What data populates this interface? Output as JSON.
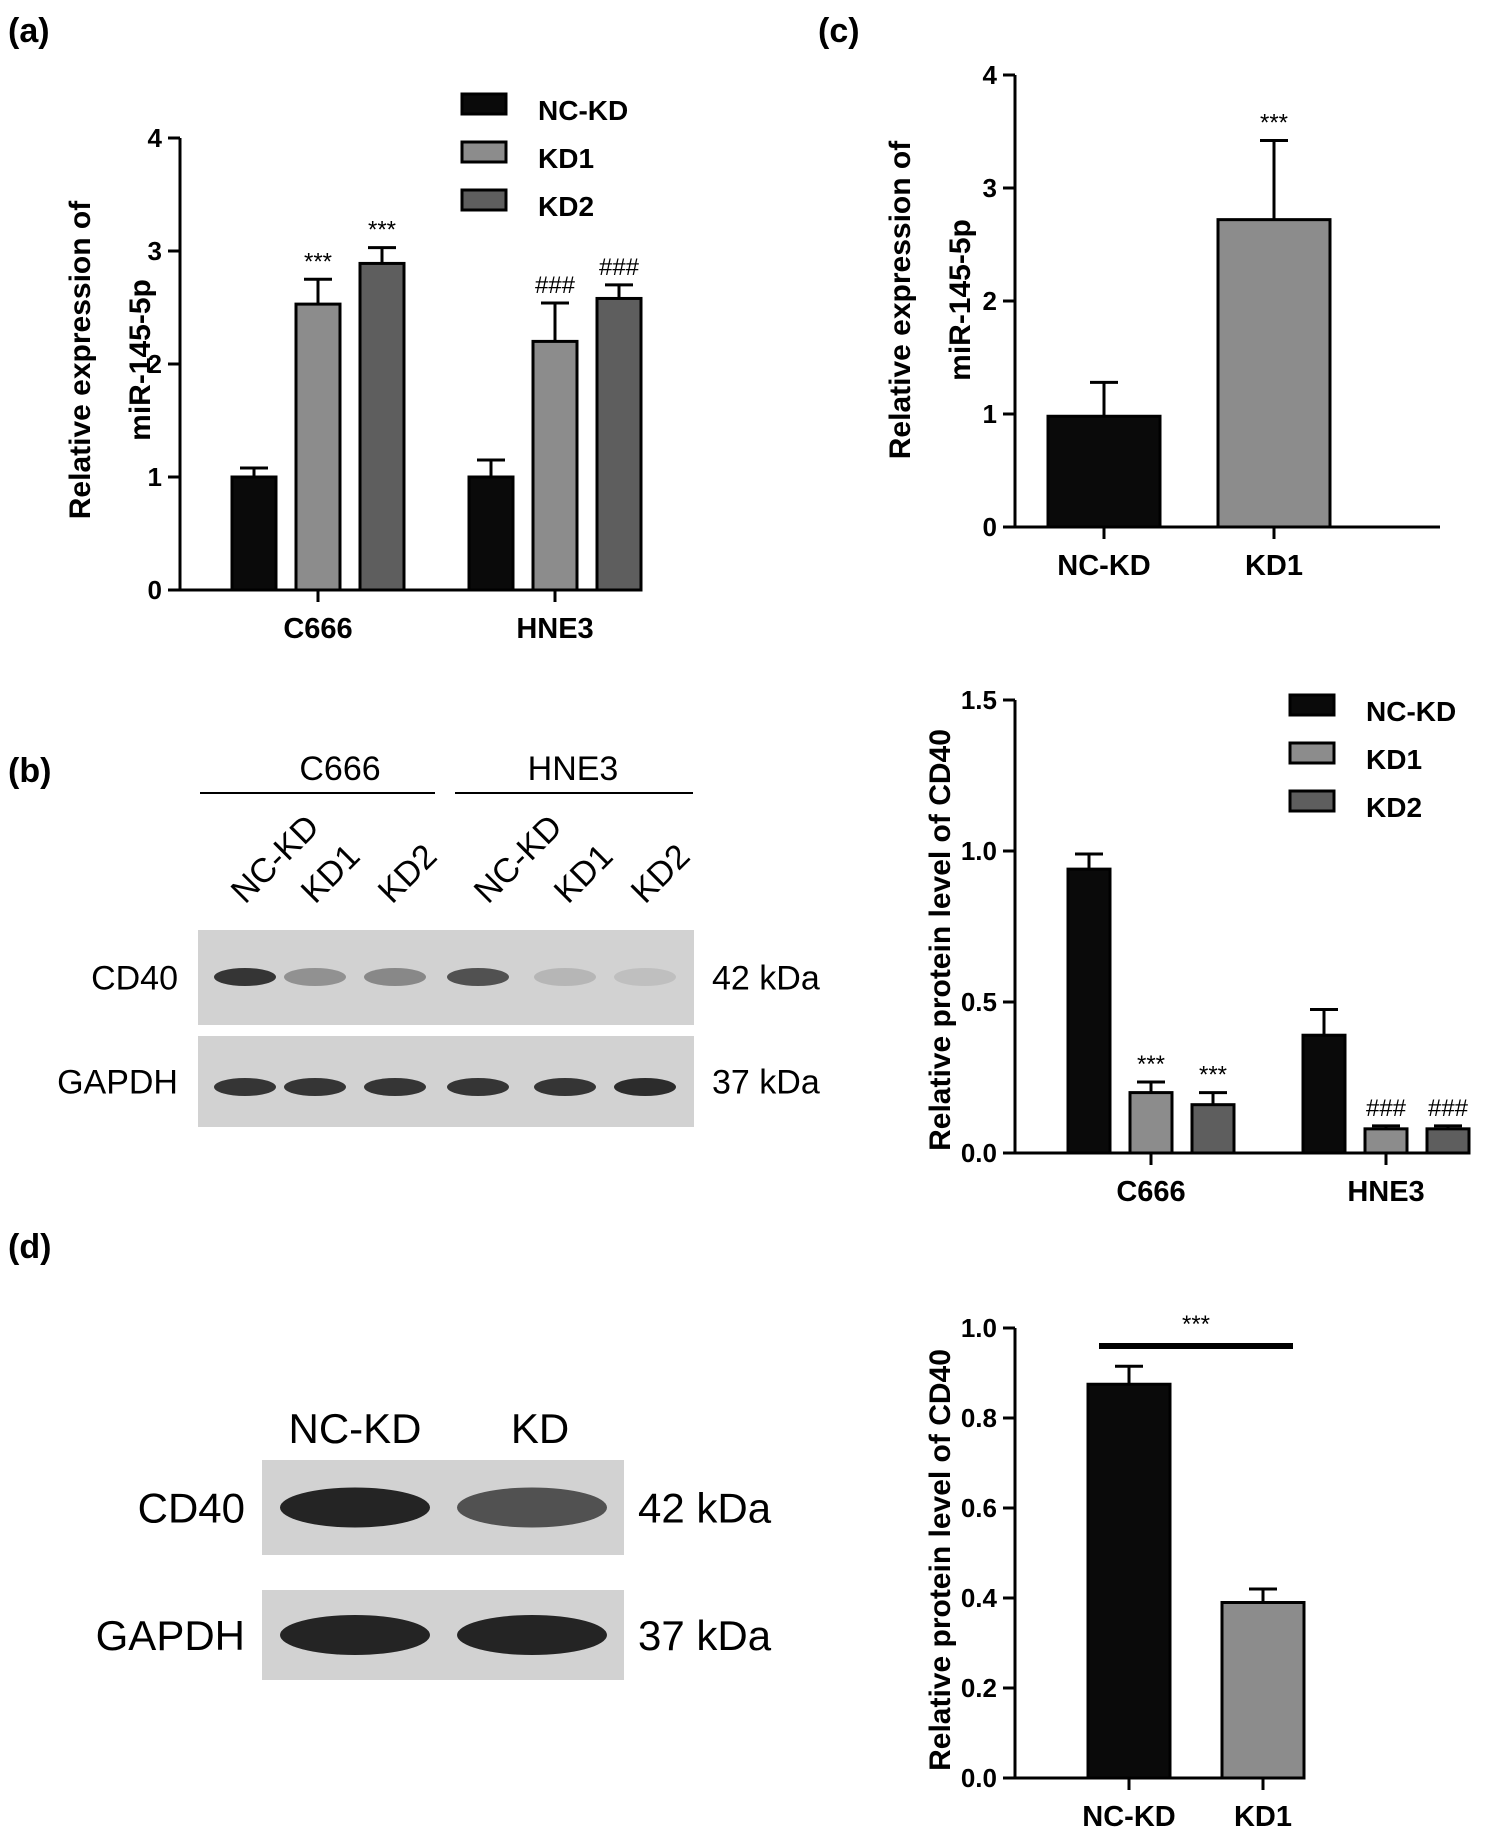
{
  "panels": {
    "a": "(a)",
    "b": "(b)",
    "c": "(c)",
    "d": "(d)"
  },
  "colors": {
    "NC-KD": "#0a0a0a",
    "KD1": "#8c8c8c",
    "KD2": "#5e5e5e",
    "blot_bg": "#d2d2d2"
  },
  "blot_b": {
    "groups": [
      "C666",
      "HNE3"
    ],
    "lanes": [
      "NC-KD",
      "KD1",
      "KD2",
      "NC-KD",
      "KD1",
      "KD2"
    ],
    "rows": [
      {
        "protein": "CD40",
        "size": "42 kDa",
        "intensity": [
          0.85,
          0.35,
          0.4,
          0.7,
          0.15,
          0.1
        ]
      },
      {
        "protein": "GAPDH",
        "size": "37 kDa",
        "intensity": [
          0.85,
          0.85,
          0.85,
          0.85,
          0.85,
          0.9
        ]
      }
    ]
  },
  "blot_d": {
    "lanes": [
      "NC-KD",
      "KD"
    ],
    "rows": [
      {
        "protein": "CD40",
        "size": "42 kDa",
        "intensity": [
          0.95,
          0.7
        ]
      },
      {
        "protein": "GAPDH",
        "size": "37 kDa",
        "intensity": [
          0.95,
          0.95
        ]
      }
    ]
  },
  "chart_data": [
    {
      "id": "a",
      "type": "bar",
      "categories": [
        "C666",
        "HNE3"
      ],
      "series": [
        {
          "name": "NC-KD",
          "values": [
            1.0,
            1.0
          ],
          "errors": [
            0.08,
            0.15
          ],
          "annotations": [
            "",
            ""
          ]
        },
        {
          "name": "KD1",
          "values": [
            2.53,
            2.2
          ],
          "errors": [
            0.22,
            0.34
          ],
          "annotations": [
            "***",
            "###"
          ]
        },
        {
          "name": "KD2",
          "values": [
            2.89,
            2.58
          ],
          "errors": [
            0.14,
            0.12
          ],
          "annotations": [
            "***",
            "###"
          ]
        }
      ],
      "ylabel_lines": [
        "Relative expression of",
        "miR-145-5p"
      ],
      "ylim": [
        0,
        4
      ],
      "yticks": [
        "0",
        "1",
        "2",
        "3",
        "4"
      ],
      "legend": "top-right"
    },
    {
      "id": "c",
      "type": "bar",
      "categories": [
        "NC-KD",
        "KD1"
      ],
      "values": [
        0.98,
        2.72
      ],
      "errors": [
        0.3,
        0.7
      ],
      "annotations": [
        "",
        "***"
      ],
      "ylabel_lines": [
        "Relative expression of",
        "miR-145-5p"
      ],
      "ylim": [
        0,
        4
      ],
      "yticks": [
        "0",
        "1",
        "2",
        "3",
        "4"
      ]
    },
    {
      "id": "b-quant",
      "type": "bar",
      "categories": [
        "C666",
        "HNE3"
      ],
      "series": [
        {
          "name": "NC-KD",
          "values": [
            0.94,
            0.39
          ],
          "errors": [
            0.05,
            0.085
          ],
          "annotations": [
            "",
            ""
          ]
        },
        {
          "name": "KD1",
          "values": [
            0.2,
            0.08
          ],
          "errors": [
            0.035,
            0.01
          ],
          "annotations": [
            "***",
            "###"
          ]
        },
        {
          "name": "KD2",
          "values": [
            0.16,
            0.08
          ],
          "errors": [
            0.04,
            0.01
          ],
          "annotations": [
            "***",
            "###"
          ]
        }
      ],
      "ylabel_lines": [
        "Relative protein level of CD40"
      ],
      "ylim": [
        0,
        1.5
      ],
      "yticks": [
        "0.0",
        "0.5",
        "1.0",
        "1.5"
      ],
      "legend": "top-right"
    },
    {
      "id": "d-quant",
      "type": "bar",
      "categories": [
        "NC-KD",
        "KD1"
      ],
      "values": [
        0.875,
        0.39
      ],
      "errors": [
        0.04,
        0.03
      ],
      "annotations": [
        "",
        ""
      ],
      "comparison": "***",
      "ylabel_lines": [
        "Relative protein level of CD40"
      ],
      "ylim": [
        0,
        1.0
      ],
      "yticks": [
        "0.0",
        "0.2",
        "0.4",
        "0.6",
        "0.8",
        "1.0"
      ]
    }
  ]
}
